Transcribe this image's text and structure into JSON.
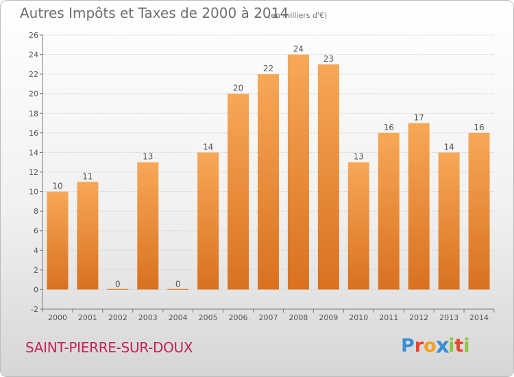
{
  "header": {
    "title": "Autres Impôts et Taxes de 2000 à 2014",
    "subtitle": "(en milliers d'€)"
  },
  "footer": {
    "commune": "SAINT-PIERRE-SUR-DOUX",
    "logo_letters": [
      "P",
      "r",
      "o",
      "x",
      "i",
      "t",
      "i"
    ],
    "logo_colors": [
      "#3a8fd4",
      "#e8432b",
      "#f2a01f",
      "#3a8fd4",
      "#8bc43f",
      "#e8432b",
      "#8bc43f"
    ]
  },
  "colors": {
    "bar_top": "#f7a857",
    "bar_bottom": "#d9711f",
    "axis": "#777777",
    "grid": "#d0d0d0",
    "text": "#555555"
  },
  "chart_data": {
    "type": "bar",
    "categories": [
      "2000",
      "2001",
      "2002",
      "2003",
      "2004",
      "2005",
      "2006",
      "2007",
      "2008",
      "2009",
      "2010",
      "2011",
      "2012",
      "2013",
      "2014"
    ],
    "values": [
      10,
      11,
      0,
      13,
      0,
      14,
      20,
      22,
      24,
      23,
      13,
      16,
      17,
      14,
      16
    ],
    "data_labels": [
      "10",
      "11",
      "0",
      "13",
      "0",
      "14",
      "20",
      "22",
      "24",
      "23",
      "13",
      "16",
      "17",
      "14",
      "16"
    ],
    "yticks": [
      "-2",
      "0",
      "2",
      "4",
      "6",
      "8",
      "10",
      "12",
      "14",
      "16",
      "18",
      "20",
      "22",
      "24",
      "26"
    ],
    "ylim": [
      -2,
      26
    ],
    "grid": true
  }
}
